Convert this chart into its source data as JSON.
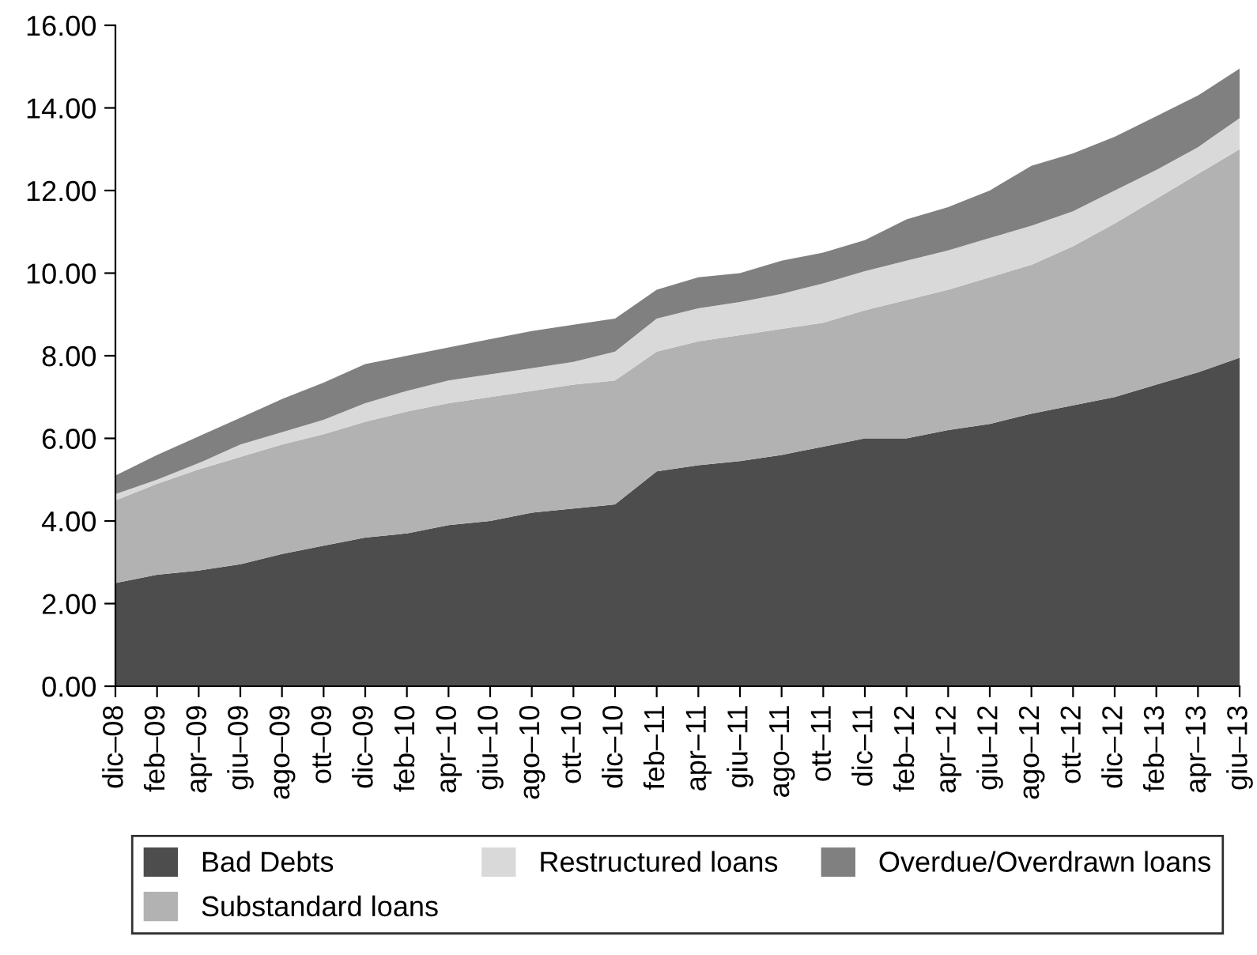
{
  "chart_data": {
    "type": "area",
    "stacked": true,
    "categories": [
      "dic–08",
      "feb–09",
      "apr–09",
      "giu–09",
      "ago–09",
      "ott–09",
      "dic–09",
      "feb–10",
      "apr–10",
      "giu–10",
      "ago–10",
      "ott–10",
      "dic–10",
      "feb–11",
      "apr–11",
      "giu–11",
      "ago–11",
      "ott–11",
      "dic–11",
      "feb–12",
      "apr–12",
      "giu–12",
      "ago–12",
      "ott–12",
      "dic–12",
      "feb–13",
      "apr–13",
      "giu–13"
    ],
    "series": [
      {
        "name": "Bad Debts",
        "color": "#4d4d4d",
        "values": [
          2.5,
          2.7,
          2.8,
          2.95,
          3.2,
          3.4,
          3.6,
          3.7,
          3.9,
          4.0,
          4.2,
          4.3,
          4.4,
          5.2,
          5.35,
          5.45,
          5.6,
          5.8,
          6.0,
          6.0,
          6.2,
          6.35,
          6.6,
          6.8,
          7.0,
          7.3,
          7.6,
          7.95
        ]
      },
      {
        "name": "Substandard loans",
        "color": "#b2b2b2",
        "values": [
          2.0,
          2.2,
          2.45,
          2.6,
          2.65,
          2.7,
          2.8,
          2.95,
          2.95,
          3.0,
          2.95,
          3.0,
          3.0,
          2.9,
          3.0,
          3.05,
          3.05,
          3.0,
          3.1,
          3.35,
          3.4,
          3.55,
          3.6,
          3.85,
          4.2,
          4.5,
          4.8,
          5.05
        ]
      },
      {
        "name": "Restructured loans",
        "color": "#d9d9d9",
        "values": [
          0.15,
          0.1,
          0.15,
          0.3,
          0.3,
          0.35,
          0.45,
          0.5,
          0.55,
          0.55,
          0.55,
          0.55,
          0.7,
          0.8,
          0.8,
          0.8,
          0.85,
          0.95,
          0.95,
          0.95,
          0.95,
          0.95,
          0.95,
          0.85,
          0.8,
          0.7,
          0.65,
          0.75
        ]
      },
      {
        "name": "Overdue/Overdrawn loans",
        "color": "#808080",
        "values": [
          0.45,
          0.6,
          0.65,
          0.65,
          0.8,
          0.9,
          0.95,
          0.85,
          0.8,
          0.85,
          0.9,
          0.9,
          0.8,
          0.7,
          0.75,
          0.7,
          0.8,
          0.75,
          0.75,
          1.0,
          1.05,
          1.15,
          1.45,
          1.4,
          1.3,
          1.3,
          1.25,
          1.2
        ]
      }
    ],
    "ylim": [
      0,
      16
    ],
    "yticks": [
      {
        "value": 0,
        "label": "0.00"
      },
      {
        "value": 2,
        "label": "2.00"
      },
      {
        "value": 4,
        "label": "4.00"
      },
      {
        "value": 6,
        "label": "6.00"
      },
      {
        "value": 8,
        "label": "8.00"
      },
      {
        "value": 10,
        "label": "10.00"
      },
      {
        "value": 12,
        "label": "12.00"
      },
      {
        "value": 14,
        "label": "14.00"
      },
      {
        "value": 16,
        "label": "16.00"
      }
    ],
    "grid": false,
    "legend": "bottom"
  }
}
